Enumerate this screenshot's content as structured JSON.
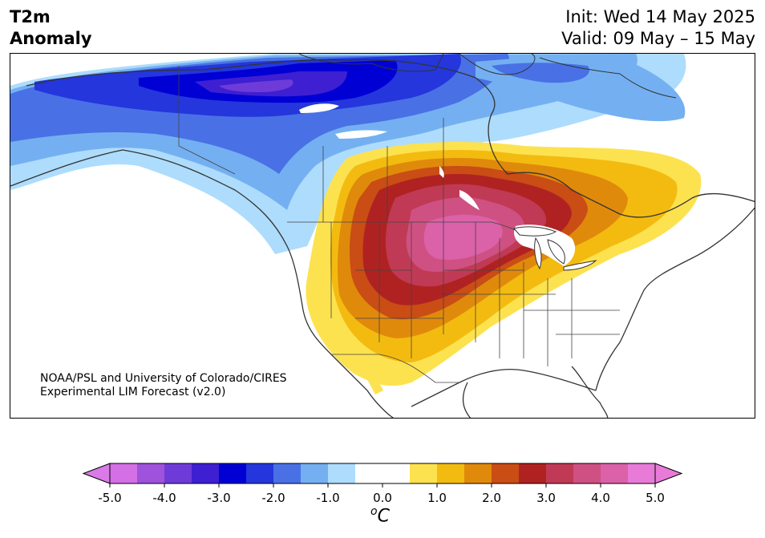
{
  "header": {
    "title_line1": "T2m",
    "title_line2": "Anomaly",
    "init": "Init: Wed 14 May 2025",
    "valid": "Valid: 09 May – 15 May"
  },
  "credit": {
    "line1": "NOAA/PSL and University of Colorado/CIRES",
    "line2": "Experimental LIM Forecast (v2.0)"
  },
  "colorbar": {
    "ticks": [
      "-5.0",
      "-4.0",
      "-3.0",
      "-2.0",
      "-1.0",
      "0.0",
      "1.0",
      "2.0",
      "3.0",
      "4.0",
      "5.0"
    ],
    "units": "C",
    "units_sup": "o",
    "colors": [
      "#d56fe6",
      "#9f52db",
      "#6e3bd9",
      "#3e1fd2",
      "#0000d5",
      "#2436dc",
      "#4971e5",
      "#74b0f1",
      "#aedcfc",
      "#ffffff",
      "#ffffff",
      "#fde24f",
      "#f3bb10",
      "#e08a0c",
      "#c94d14",
      "#b02222",
      "#c03a55",
      "#cf5183",
      "#db62a9",
      "#e87bd7"
    ],
    "under_color": "#da7ae8",
    "over_color": "#e87bd7"
  },
  "map": {
    "cold_anomaly_region": "Canada / Alaska",
    "warm_anomaly_region": "Central United States"
  }
}
